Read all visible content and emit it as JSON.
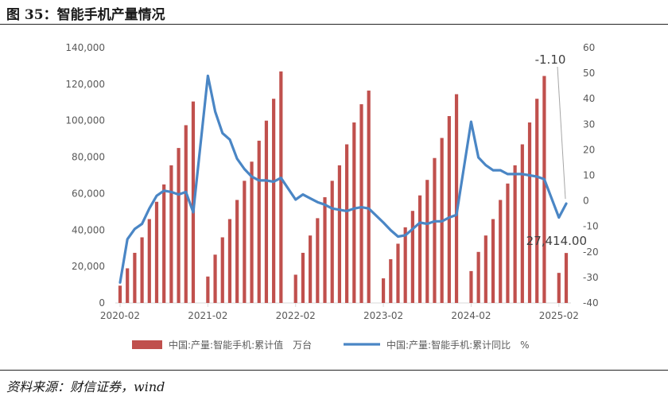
{
  "figure": {
    "title": "图 35：智能手机产量情况",
    "source": "资料来源：财信证券，wind"
  },
  "chart_data": {
    "type": "bar+line",
    "series": [
      {
        "name": "中国:产量:智能手机:累计值　万台",
        "axis": "left",
        "kind": "bar",
        "color": "#c0504d",
        "values": [
          9500,
          19000,
          27500,
          36000,
          46000,
          55500,
          65000,
          75500,
          85000,
          97500,
          110500,
          null,
          14500,
          26500,
          36000,
          46000,
          56500,
          67000,
          77500,
          89000,
          100000,
          112000,
          127000,
          null,
          15500,
          27500,
          37000,
          46500,
          58000,
          67000,
          75500,
          87000,
          99000,
          109000,
          116500,
          null,
          13500,
          24000,
          32500,
          41500,
          50500,
          59000,
          67500,
          79500,
          90500,
          102500,
          114500,
          null,
          17500,
          28000,
          37000,
          46000,
          56500,
          65500,
          75500,
          87000,
          99000,
          112000,
          124500,
          null,
          16500,
          27414
        ]
      },
      {
        "name": "中国:产量:智能手机:累计同比　%",
        "axis": "right",
        "kind": "line",
        "color": "#4a86c5",
        "values": [
          -32,
          -15,
          -11,
          -9,
          -3,
          2,
          4,
          3.5,
          2.5,
          3.5,
          -4.5,
          null,
          49,
          35,
          26.5,
          24,
          16.5,
          12.5,
          9.5,
          8,
          8,
          7.5,
          9,
          null,
          0.5,
          2.5,
          1,
          -0.5,
          -1.5,
          -3,
          -3.5,
          -4,
          -3,
          -2.5,
          -3,
          null,
          -8.5,
          -11.5,
          -14,
          -13.5,
          -11,
          -8.5,
          -9,
          -8,
          -8,
          -6.5,
          -5.5,
          null,
          31,
          17,
          14,
          12,
          12,
          10.5,
          10.5,
          10.5,
          10,
          9.5,
          8.5,
          null,
          -6.5,
          -1.1
        ]
      }
    ],
    "x_tick_labels": [
      "2020-02",
      "2021-02",
      "2022-02",
      "2023-02",
      "2024-02",
      "2025-02"
    ],
    "y_left": {
      "range": [
        0,
        140000
      ],
      "tick_labels": [
        "0",
        "20,000",
        "40,000",
        "60,000",
        "80,000",
        "100,000",
        "120,000",
        "140,000"
      ]
    },
    "y_right": {
      "range": [
        -40,
        60
      ],
      "tick_labels": [
        "-40",
        "-30",
        "-20",
        "-10",
        "0",
        "10",
        "20",
        "30",
        "40",
        "50",
        "60"
      ]
    },
    "annotations": [
      {
        "text": "-1.10",
        "series": 1,
        "point": 61
      },
      {
        "text": "27,414.00",
        "series": 0,
        "point": 61
      }
    ],
    "legend_position": "bottom",
    "grid": false
  }
}
